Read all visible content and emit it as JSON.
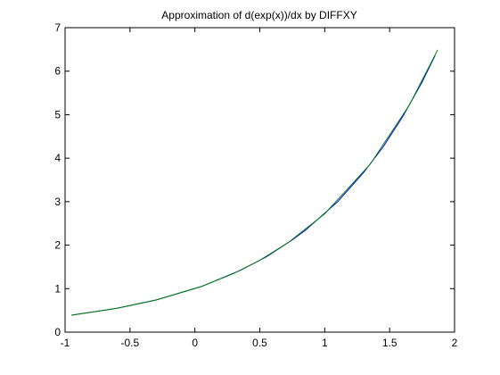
{
  "chart_data": {
    "type": "line",
    "title": "Approximation of d(exp(x))/dx by DIFFXY",
    "xlabel": "",
    "ylabel": "",
    "xlim": [
      -1,
      2
    ],
    "ylim": [
      0,
      7
    ],
    "xticks": [
      "-1",
      "-0.5",
      "0",
      "0.5",
      "1",
      "1.5",
      "2"
    ],
    "yticks": [
      "0",
      "1",
      "2",
      "3",
      "4",
      "5",
      "6",
      "7"
    ],
    "grid": false,
    "legend": "none",
    "series": [
      {
        "color": "#0000ff",
        "x": [
          -0.95,
          -0.6,
          -0.3,
          0.05,
          0.35,
          0.55,
          0.75,
          0.85,
          1.1,
          1.3,
          1.45,
          1.6,
          1.75,
          1.85
        ],
        "y": [
          0.39,
          0.55,
          0.74,
          1.05,
          1.42,
          1.73,
          2.12,
          2.34,
          3.0,
          3.67,
          4.26,
          4.95,
          5.75,
          6.36
        ]
      },
      {
        "color": "#008000",
        "x": [
          -0.95,
          -0.6,
          -0.3,
          0.05,
          0.3,
          0.5,
          0.72,
          1.0,
          1.35,
          1.65,
          1.87
        ],
        "y": [
          0.39,
          0.55,
          0.74,
          1.05,
          1.35,
          1.65,
          2.06,
          2.72,
          3.86,
          5.21,
          6.49
        ]
      }
    ]
  }
}
